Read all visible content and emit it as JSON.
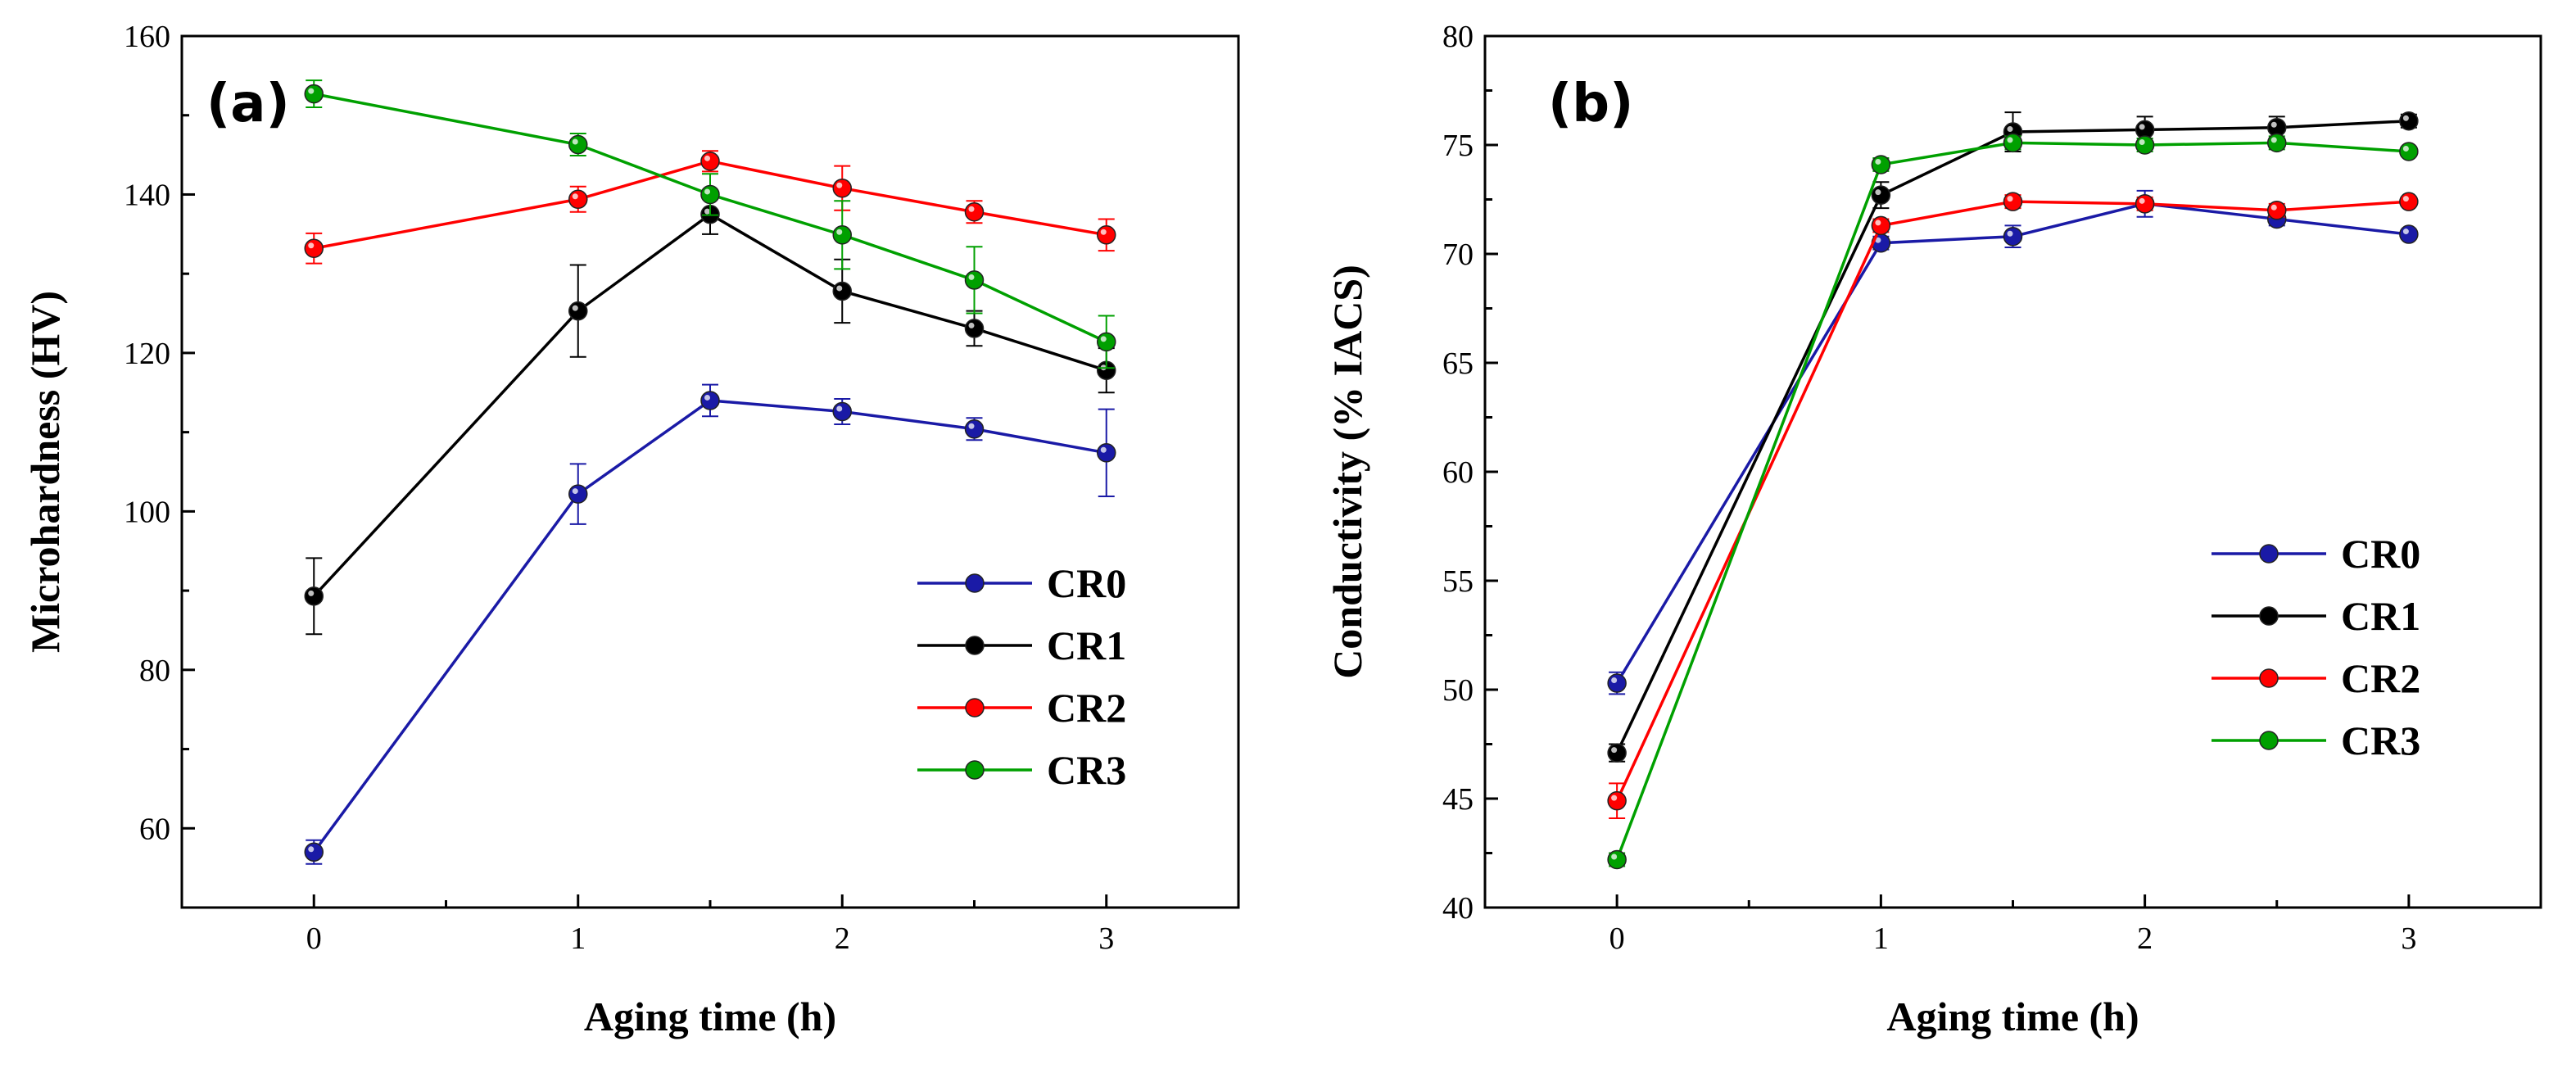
{
  "chart_data": [
    {
      "type": "line",
      "panel_label": "(a)",
      "title": "",
      "xlabel": "Aging time (h)",
      "ylabel": "Microhardness (HV)",
      "xlim": [
        -0.5,
        3.5
      ],
      "ylim": [
        50,
        160
      ],
      "xticks": [
        0,
        1,
        2,
        3
      ],
      "xtick_labels": [
        "0",
        "1",
        "2",
        "3"
      ],
      "yticks": [
        60,
        80,
        100,
        120,
        140,
        160
      ],
      "ytick_labels": [
        "60",
        "80",
        "100",
        "120",
        "140",
        "160"
      ],
      "grid": false,
      "legend_position": "lower-right",
      "x": [
        0,
        1,
        1.5,
        2,
        2.5,
        3
      ],
      "series": [
        {
          "name": "CR0",
          "color": "#1a1aa6",
          "values": [
            57.0,
            102.2,
            114.0,
            112.6,
            110.4,
            107.4
          ],
          "errors": [
            1.5,
            3.8,
            2.0,
            1.6,
            1.4,
            5.5
          ]
        },
        {
          "name": "CR1",
          "color": "#000000",
          "values": [
            89.3,
            125.3,
            137.5,
            127.8,
            123.1,
            117.8
          ],
          "errors": [
            4.8,
            5.8,
            2.5,
            4.0,
            2.2,
            2.8
          ]
        },
        {
          "name": "CR2",
          "color": "#ff0000",
          "values": [
            133.2,
            139.4,
            144.2,
            140.8,
            137.8,
            134.9
          ],
          "errors": [
            1.9,
            1.6,
            1.3,
            2.8,
            1.4,
            2.0
          ]
        },
        {
          "name": "CR3",
          "color": "#00a000",
          "values": [
            152.7,
            146.3,
            140.0,
            134.9,
            129.2,
            121.4
          ],
          "errors": [
            1.7,
            1.4,
            2.6,
            4.3,
            4.2,
            3.3
          ]
        }
      ]
    },
    {
      "type": "line",
      "panel_label": "(b)",
      "title": "",
      "xlabel": "Aging time (h)",
      "ylabel": "Conductivity (% IACS)",
      "xlim": [
        -0.5,
        3.5
      ],
      "ylim": [
        40,
        80
      ],
      "xticks": [
        0,
        1,
        2,
        3
      ],
      "xtick_labels": [
        "0",
        "1",
        "2",
        "3"
      ],
      "yticks": [
        40,
        45,
        50,
        55,
        60,
        65,
        70,
        75,
        80
      ],
      "ytick_labels": [
        "40",
        "45",
        "50",
        "55",
        "60",
        "65",
        "70",
        "75",
        "80"
      ],
      "grid": false,
      "legend_position": "center-right",
      "x": [
        0,
        1,
        1.5,
        2,
        2.5,
        3
      ],
      "series": [
        {
          "name": "CR0",
          "color": "#1a1aa6",
          "values": [
            50.3,
            70.5,
            70.8,
            72.3,
            71.6,
            70.9
          ],
          "errors": [
            0.5,
            0.3,
            0.5,
            0.6,
            0.3,
            0.2
          ]
        },
        {
          "name": "CR1",
          "color": "#000000",
          "values": [
            47.1,
            72.7,
            75.6,
            75.7,
            75.8,
            76.1
          ],
          "errors": [
            0.4,
            0.6,
            0.9,
            0.6,
            0.5,
            0.3
          ]
        },
        {
          "name": "CR2",
          "color": "#ff0000",
          "values": [
            44.9,
            71.3,
            72.4,
            72.3,
            72.0,
            72.4
          ],
          "errors": [
            0.8,
            0.3,
            0.3,
            0.3,
            0.3,
            0.2
          ]
        },
        {
          "name": "CR3",
          "color": "#00a000",
          "values": [
            42.2,
            74.1,
            75.1,
            75.0,
            75.1,
            74.7
          ],
          "errors": [
            0.3,
            0.3,
            0.3,
            0.3,
            0.3,
            0.2
          ]
        }
      ]
    }
  ]
}
